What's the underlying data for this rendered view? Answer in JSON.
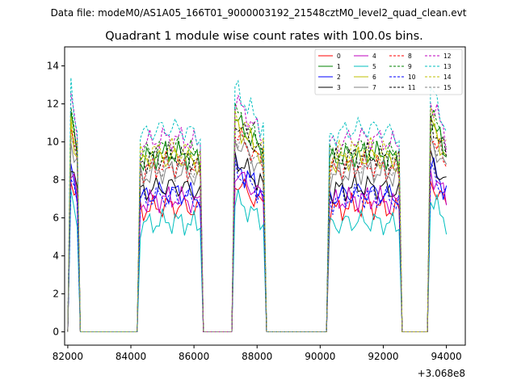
{
  "suptitle": "Data file: modeM0/AS1A05_166T01_9000003192_21548cztM0_level2_quad_clean.evt",
  "chart_data": {
    "type": "line",
    "title": "Quadrant 1 module wise count rates with 100.0s bins.",
    "xlabel": "",
    "ylabel": "",
    "x_offset_label": "+3.068e8",
    "xlim": [
      81900,
      94600
    ],
    "ylim": [
      -0.7,
      15.0
    ],
    "x_ticks": [
      82000,
      84000,
      86000,
      88000,
      90000,
      92000,
      94000
    ],
    "x_tick_labels": [
      "82000",
      "84000",
      "86000",
      "88000",
      "90000",
      "92000",
      "94000"
    ],
    "y_ticks": [
      0,
      2,
      4,
      6,
      8,
      10,
      12,
      14
    ],
    "y_tick_labels": [
      "0",
      "2",
      "4",
      "6",
      "8",
      "10",
      "12",
      "14"
    ],
    "grid": false,
    "legend_position": "upper right",
    "legend_columns": 4,
    "segments": [
      {
        "start": 82100,
        "end": 82300,
        "peak_start": true
      },
      {
        "start": 84300,
        "end": 86200,
        "peak_start": false
      },
      {
        "start": 87300,
        "end": 88200,
        "peak_start": true
      },
      {
        "start": 90300,
        "end": 92500,
        "peak_start": false
      },
      {
        "start": 93500,
        "end": 94000,
        "peak_start": true
      }
    ],
    "series": [
      {
        "name": "0",
        "color": "#ff0000",
        "dashed": false,
        "level": 6.5
      },
      {
        "name": "1",
        "color": "#008000",
        "dashed": false,
        "level": 9.2
      },
      {
        "name": "2",
        "color": "#0000ff",
        "dashed": false,
        "level": 7.2
      },
      {
        "name": "3",
        "color": "#000000",
        "dashed": false,
        "level": 7.5
      },
      {
        "name": "4",
        "color": "#bf00bf",
        "dashed": false,
        "level": 6.9
      },
      {
        "name": "5",
        "color": "#00bfbf",
        "dashed": false,
        "level": 5.7
      },
      {
        "name": "6",
        "color": "#bfbf00",
        "dashed": false,
        "level": 9.0
      },
      {
        "name": "7",
        "color": "#808080",
        "dashed": false,
        "level": 8.3
      },
      {
        "name": "8",
        "color": "#ff0000",
        "dashed": true,
        "level": 8.6
      },
      {
        "name": "9",
        "color": "#008000",
        "dashed": true,
        "level": 9.5
      },
      {
        "name": "10",
        "color": "#0000ff",
        "dashed": true,
        "level": 7.0
      },
      {
        "name": "11",
        "color": "#000000",
        "dashed": true,
        "level": 9.1
      },
      {
        "name": "12",
        "color": "#bf00bf",
        "dashed": true,
        "level": 10.0
      },
      {
        "name": "13",
        "color": "#00bfbf",
        "dashed": true,
        "level": 10.5
      },
      {
        "name": "14",
        "color": "#bfbf00",
        "dashed": true,
        "level": 9.4
      },
      {
        "name": "15",
        "color": "#808080",
        "dashed": true,
        "level": 8.5
      }
    ]
  }
}
